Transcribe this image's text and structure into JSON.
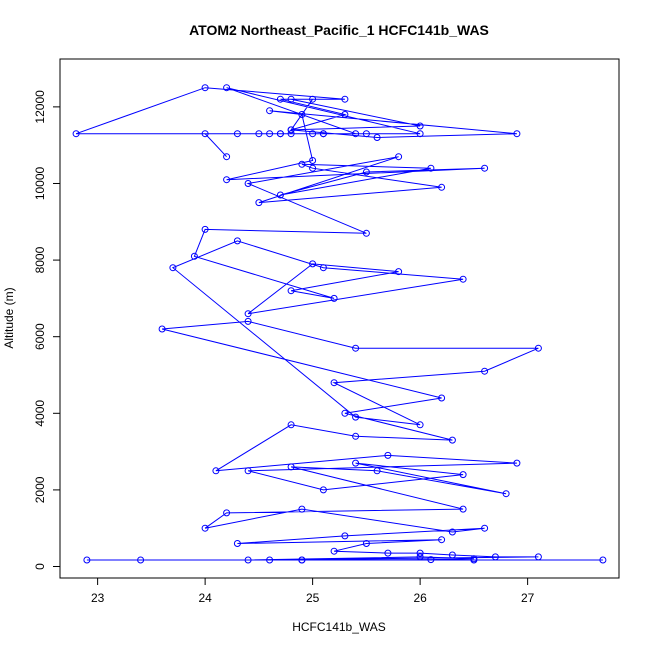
{
  "chart_data": {
    "type": "line",
    "title": "ATOM2 Northeast_Pacific_1 HCFC141b_WAS",
    "xlabel": "HCFC141b_WAS",
    "ylabel": "Altitude (m)",
    "xlim": [
      22.65,
      27.85
    ],
    "ylim": [
      -300,
      13250
    ],
    "xticks": [
      23,
      24,
      25,
      26,
      27
    ],
    "yticks": [
      0,
      2000,
      4000,
      6000,
      8000,
      10000,
      12000
    ],
    "grid": false,
    "series_color": "#0000ff",
    "x": [
      22.9,
      27.7,
      23.4,
      26.5,
      24.6,
      24.9,
      24.9,
      26.1,
      26.5,
      26.0,
      24.4,
      27.1,
      26.7,
      26.3,
      26.0,
      25.7,
      25.2,
      25.5,
      26.2,
      24.3,
      25.3,
      26.6,
      26.3,
      24.9,
      24.0,
      24.2,
      26.4,
      24.8,
      25.6,
      26.8,
      25.4,
      26.4,
      25.1,
      24.4,
      26.9,
      25.7,
      24.1,
      24.8,
      25.4,
      26.3,
      25.3,
      26.2,
      23.6,
      24.4,
      25.4,
      27.1,
      26.6,
      25.2,
      26.0,
      25.4,
      23.7,
      24.3,
      25.1,
      26.4,
      24.4,
      25.0,
      25.8,
      24.8,
      25.2,
      23.9,
      24.0,
      25.5,
      24.4,
      25.8,
      24.5,
      26.2,
      25.0,
      24.9,
      26.1,
      24.7,
      25.5,
      26.6,
      24.2,
      25.0,
      24.9,
      24.6,
      26.9,
      25.6,
      24.8,
      26.0,
      24.8,
      25.0,
      24.8,
      25.3,
      24.7,
      25.3,
      24.0,
      22.8,
      25.1,
      26.0,
      24.2,
      25.4,
      24.8,
      25.0,
      24.5,
      24.7,
      25.1,
      24.6,
      25.5,
      24.7,
      24.3,
      24.0,
      24.2
    ],
    "y": [
      170,
      170,
      170,
      170,
      170,
      170,
      170,
      180,
      200,
      250,
      170,
      250,
      250,
      300,
      350,
      350,
      400,
      600,
      700,
      600,
      800,
      1000,
      900,
      1500,
      1000,
      1400,
      1500,
      2600,
      2500,
      1900,
      2700,
      2400,
      2000,
      2500,
      2700,
      2900,
      2500,
      3700,
      3400,
      3300,
      4000,
      4400,
      6200,
      6400,
      5700,
      5700,
      5100,
      4800,
      3700,
      3900,
      7800,
      8500,
      7800,
      7500,
      6600,
      7900,
      7700,
      7200,
      7000,
      8100,
      8800,
      8700,
      10000,
      10700,
      9500,
      9900,
      10400,
      10500,
      10400,
      9700,
      10300,
      10400,
      10100,
      10600,
      11800,
      11900,
      11300,
      11200,
      11400,
      11500,
      12200,
      12200,
      11400,
      11800,
      12200,
      12200,
      12500,
      11300,
      11300,
      11300,
      12500,
      11300,
      11300,
      11300,
      11300,
      11300,
      11300,
      11300,
      11300,
      11300,
      11300,
      11300,
      10700
    ]
  }
}
